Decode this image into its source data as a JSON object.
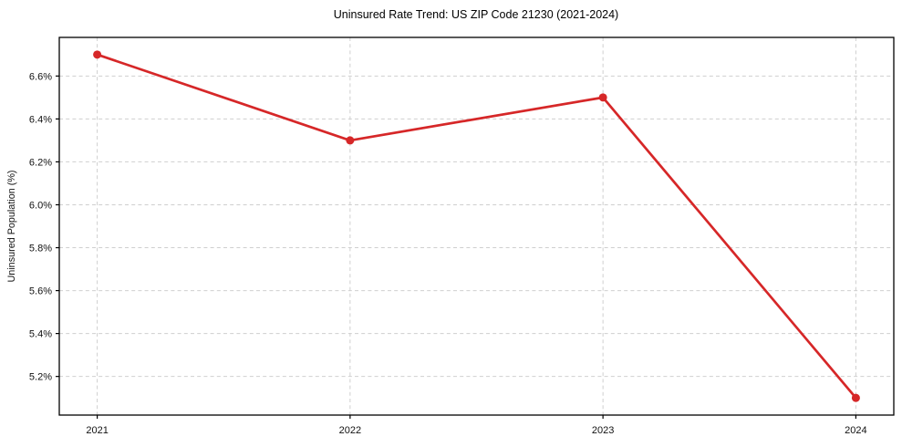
{
  "chart_data": {
    "type": "line",
    "title": "Uninsured Rate Trend: US ZIP Code 21230 (2021-2024)",
    "xlabel": "",
    "ylabel": "Uninsured Population (%)",
    "categories": [
      "2021",
      "2022",
      "2023",
      "2024"
    ],
    "x": [
      2021,
      2022,
      2023,
      2024
    ],
    "series": [
      {
        "name": "Uninsured Population (%)",
        "values": [
          6.7,
          6.3,
          6.5,
          5.1
        ]
      }
    ],
    "xlim": [
      2020.85,
      2024.15
    ],
    "ylim": [
      5.02,
      6.78
    ],
    "yticks": [
      5.2,
      5.4,
      5.6,
      5.8,
      6.0,
      6.2,
      6.4,
      6.6
    ],
    "ytick_suffix": "%",
    "grid": true,
    "grid_style": "dashed",
    "legend_position": "none",
    "colors": {
      "line": "#d62728",
      "marker": "#d62728",
      "grid": "#cfcfcf",
      "spine": "#000000",
      "background": "#ffffff",
      "text": "#111111"
    }
  }
}
